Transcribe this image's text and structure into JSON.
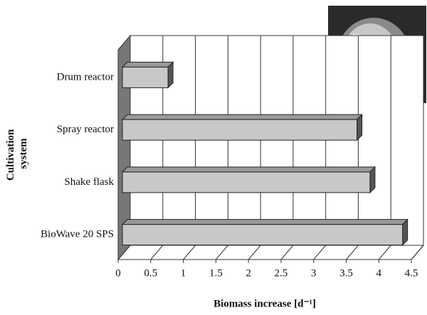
{
  "chart_data": {
    "type": "bar",
    "orientation": "horizontal",
    "categories": [
      "Drum reactor",
      "Spray reactor",
      "Shake flask",
      "BioWave 20 SPS"
    ],
    "values": [
      0.7,
      3.6,
      3.8,
      4.3
    ],
    "color": "#c8c8c8",
    "xlim": [
      0,
      4.5
    ],
    "xticks": [
      0,
      0.5,
      1,
      1.5,
      2,
      2.5,
      3,
      3.5,
      4,
      4.5
    ],
    "xlabel": "Biomass increase [d⁻¹]",
    "ylabel": [
      "Cultivation",
      "system"
    ],
    "grid": true
  }
}
